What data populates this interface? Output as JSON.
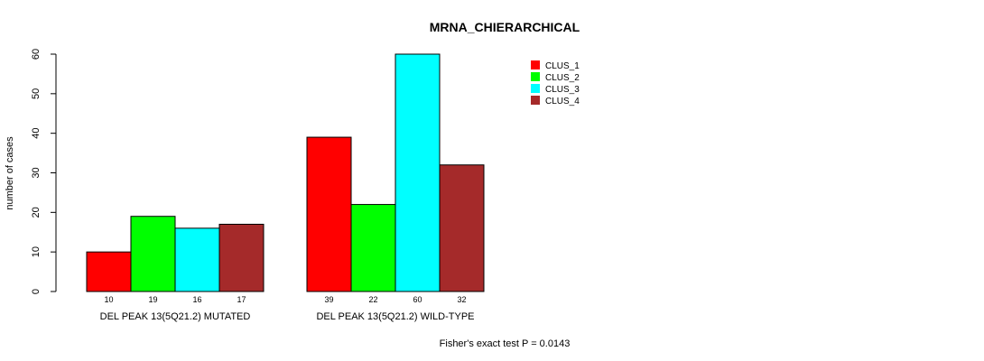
{
  "chart_data": {
    "type": "bar",
    "title": "MRNA_CHIERARCHICAL",
    "ylabel": "number of cases",
    "xlabel": "",
    "ylim": [
      0,
      60
    ],
    "yticks": [
      0,
      10,
      20,
      30,
      40,
      50,
      60
    ],
    "groups": [
      "DEL PEAK 13(5Q21.2) MUTATED",
      "DEL PEAK 13(5Q21.2) WILD-TYPE"
    ],
    "series": [
      {
        "name": "CLUS_1",
        "color": "#ff0000",
        "values": [
          10,
          39
        ]
      },
      {
        "name": "CLUS_2",
        "color": "#00ff00",
        "values": [
          19,
          22
        ]
      },
      {
        "name": "CLUS_3",
        "color": "#00ffff",
        "values": [
          16,
          60
        ]
      },
      {
        "name": "CLUS_4",
        "color": "#a52a2a",
        "values": [
          17,
          32
        ]
      }
    ],
    "legend_position": "top-right",
    "grid": false,
    "footnote": "Fisher's exact test P = 0.0143"
  }
}
